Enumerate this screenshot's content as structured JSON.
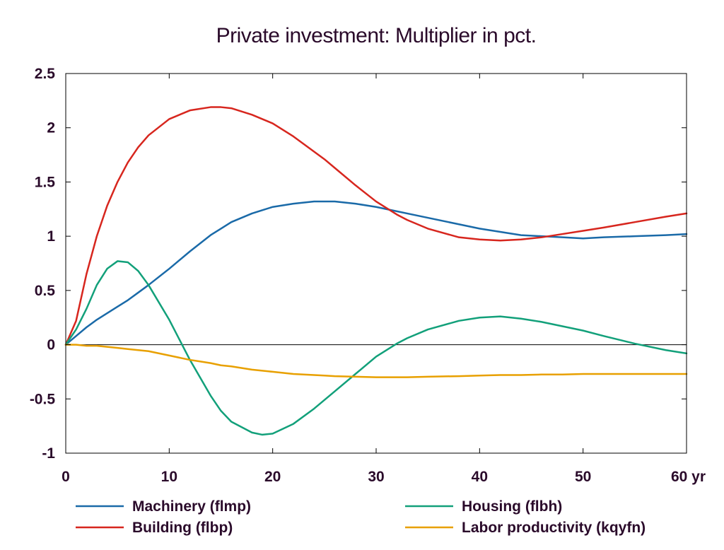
{
  "chart_data": {
    "type": "line",
    "title": "Private investment: Multiplier in pct.",
    "xlabel": "",
    "ylabel": "",
    "x_unit": "yr",
    "xlim": [
      0,
      60
    ],
    "ylim": [
      -1,
      2.5
    ],
    "x_ticks": [
      0,
      10,
      20,
      30,
      40,
      50,
      60
    ],
    "x_tick_labels": [
      "0",
      "10",
      "20",
      "30",
      "40",
      "50",
      "60 yr"
    ],
    "y_ticks": [
      -1,
      -0.5,
      0,
      0.5,
      1,
      1.5,
      2,
      2.5
    ],
    "y_tick_labels": [
      "-1",
      "-0.5",
      "0",
      "0.5",
      "1",
      "1.5",
      "2",
      "2.5"
    ],
    "grid": false,
    "zero_line": true,
    "legend_position": "bottom",
    "x": [
      0,
      1,
      2,
      3,
      4,
      5,
      6,
      7,
      8,
      10,
      12,
      14,
      15,
      16,
      18,
      19,
      20,
      22,
      24,
      25,
      26,
      28,
      30,
      32,
      33,
      35,
      38,
      40,
      42,
      44,
      46,
      48,
      50,
      52,
      55,
      58,
      60
    ],
    "series": [
      {
        "name": "Machinery (flmp)",
        "color": "#1a6aa8",
        "values": [
          0,
          0.08,
          0.16,
          0.23,
          0.29,
          0.35,
          0.41,
          0.48,
          0.55,
          0.7,
          0.86,
          1.01,
          1.07,
          1.13,
          1.21,
          1.24,
          1.27,
          1.3,
          1.32,
          1.32,
          1.32,
          1.3,
          1.27,
          1.23,
          1.21,
          1.17,
          1.11,
          1.07,
          1.04,
          1.01,
          1.0,
          0.99,
          0.98,
          0.99,
          1.0,
          1.01,
          1.02
        ]
      },
      {
        "name": "Building (flbp)",
        "color": "#d7261e",
        "values": [
          0,
          0.22,
          0.65,
          1.0,
          1.28,
          1.5,
          1.68,
          1.82,
          1.93,
          2.08,
          2.16,
          2.19,
          2.19,
          2.18,
          2.12,
          2.08,
          2.04,
          1.92,
          1.78,
          1.71,
          1.63,
          1.47,
          1.32,
          1.2,
          1.15,
          1.07,
          0.99,
          0.97,
          0.96,
          0.97,
          0.99,
          1.02,
          1.05,
          1.08,
          1.13,
          1.18,
          1.21
        ]
      },
      {
        "name": "Housing (flbh)",
        "color": "#12a07a",
        "values": [
          0,
          0.14,
          0.33,
          0.55,
          0.7,
          0.77,
          0.76,
          0.68,
          0.55,
          0.23,
          -0.14,
          -0.47,
          -0.61,
          -0.71,
          -0.81,
          -0.83,
          -0.82,
          -0.73,
          -0.59,
          -0.51,
          -0.43,
          -0.27,
          -0.11,
          0.01,
          0.06,
          0.14,
          0.22,
          0.25,
          0.26,
          0.24,
          0.21,
          0.17,
          0.13,
          0.08,
          0.01,
          -0.05,
          -0.08
        ]
      },
      {
        "name": "Labor productivity (kqyfn)",
        "color": "#e8a000",
        "values": [
          0,
          0,
          -0.01,
          -0.01,
          -0.02,
          -0.03,
          -0.04,
          -0.05,
          -0.06,
          -0.1,
          -0.14,
          -0.17,
          -0.19,
          -0.2,
          -0.23,
          -0.24,
          -0.25,
          -0.27,
          -0.28,
          -0.285,
          -0.29,
          -0.295,
          -0.3,
          -0.3,
          -0.3,
          -0.295,
          -0.29,
          -0.285,
          -0.28,
          -0.28,
          -0.275,
          -0.275,
          -0.27,
          -0.27,
          -0.27,
          -0.27,
          -0.27
        ]
      }
    ]
  }
}
